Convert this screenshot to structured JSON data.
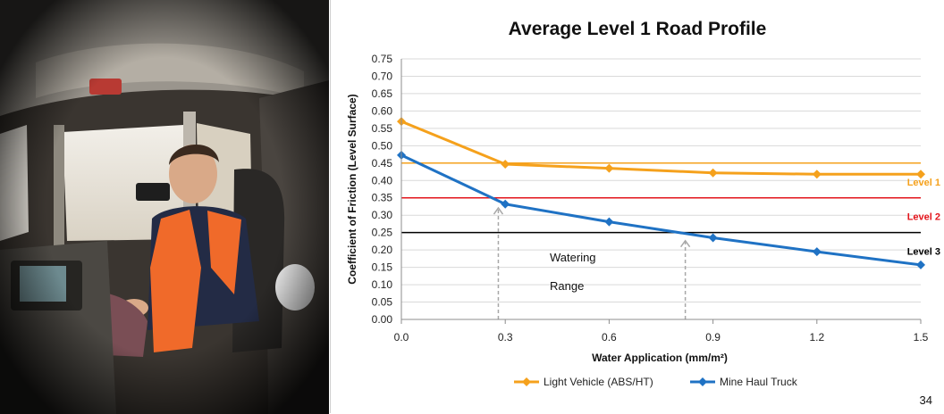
{
  "photo": {
    "subject": "Man in orange high-visibility vest seated in mine haul truck cab"
  },
  "page_number": "34",
  "chart_data": {
    "type": "line",
    "title": "Average Level 1 Road Profile",
    "xlabel": "Water Application (mm/m²)",
    "ylabel": "Coefficient of Friction (Level Surface)",
    "xlim": [
      0,
      1.5
    ],
    "ylim": [
      0,
      0.75
    ],
    "x_ticks": [
      "0.0",
      "0.3",
      "0.6",
      "0.9",
      "1.2",
      "1.5"
    ],
    "y_ticks": [
      "0.00",
      "0.05",
      "0.10",
      "0.15",
      "0.20",
      "0.25",
      "0.30",
      "0.35",
      "0.40",
      "0.45",
      "0.50",
      "0.55",
      "0.60",
      "0.65",
      "0.70",
      "0.75"
    ],
    "grid": true,
    "legend_position": "bottom",
    "series": [
      {
        "name": "Light Vehicle (ABS/HT)",
        "color": "#f5a11c",
        "marker": "diamond",
        "x": [
          0.0,
          0.3,
          0.6,
          0.9,
          1.2,
          1.5
        ],
        "y": [
          0.57,
          0.447,
          0.435,
          0.422,
          0.418,
          0.418
        ]
      },
      {
        "name": "Mine Haul Truck",
        "color": "#1f72c4",
        "marker": "diamond",
        "x": [
          0.0,
          0.3,
          0.6,
          0.9,
          1.2,
          1.5
        ],
        "y": [
          0.473,
          0.332,
          0.281,
          0.235,
          0.195,
          0.157
        ]
      }
    ],
    "reference_lines": [
      {
        "label": "Level 1",
        "y": 0.45,
        "color": "#f5a11c"
      },
      {
        "label": "Level 2",
        "y": 0.35,
        "color": "#e3141b"
      },
      {
        "label": "Level 3",
        "y": 0.25,
        "color": "#000000"
      }
    ],
    "watering_range": {
      "label_line1": "Watering",
      "label_line2": "Range",
      "x_start": 0.28,
      "x_end": 0.82,
      "color": "#a8a8a8"
    }
  }
}
